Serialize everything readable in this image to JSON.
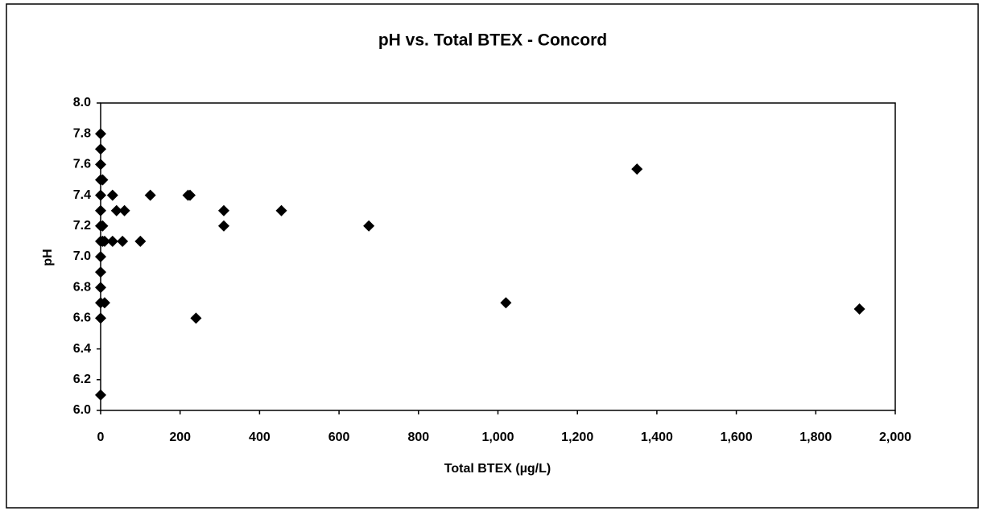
{
  "chart_data": {
    "type": "scatter",
    "title": "pH vs. Total BTEX - Concord",
    "x_label": "Total BTEX (µg/L)",
    "y_label": "pH",
    "x": [
      0,
      0,
      0,
      0,
      5,
      0,
      0,
      0,
      5,
      0,
      5,
      10,
      0,
      0,
      0,
      0,
      10,
      0,
      0,
      30,
      125,
      220,
      225,
      40,
      60,
      310,
      455,
      310,
      675,
      30,
      55,
      100,
      240,
      1020,
      1350,
      1910
    ],
    "values": [
      7.8,
      7.7,
      7.6,
      7.5,
      7.5,
      7.4,
      7.3,
      7.2,
      7.2,
      7.1,
      7.1,
      7.1,
      7.0,
      6.9,
      6.8,
      6.7,
      6.7,
      6.6,
      6.1,
      7.4,
      7.4,
      7.4,
      7.4,
      7.3,
      7.3,
      7.3,
      7.3,
      7.2,
      7.2,
      7.1,
      7.1,
      7.1,
      6.6,
      6.7,
      7.57,
      6.66
    ],
    "color": "#000000",
    "xlim": [
      0,
      2000
    ],
    "xticks": [
      0,
      200,
      400,
      600,
      800,
      {
        "value": 1000,
        "label": "1,000"
      },
      {
        "value": 1200,
        "label": "1,200"
      },
      {
        "value": 1400,
        "label": "1,400"
      },
      {
        "value": 1600,
        "label": "1,600"
      },
      {
        "value": 1800,
        "label": "1,800"
      },
      {
        "value": 2000,
        "label": "2,000"
      }
    ],
    "ylim": [
      6,
      8
    ],
    "yticks": [
      {
        "value": 6,
        "label": "6.0"
      },
      6.2,
      6.4,
      6.6,
      6.8,
      {
        "value": 7,
        "label": "7.0"
      },
      7.2,
      7.4,
      7.6,
      7.8,
      {
        "value": 8,
        "label": "8.0"
      }
    ],
    "grid": false
  }
}
